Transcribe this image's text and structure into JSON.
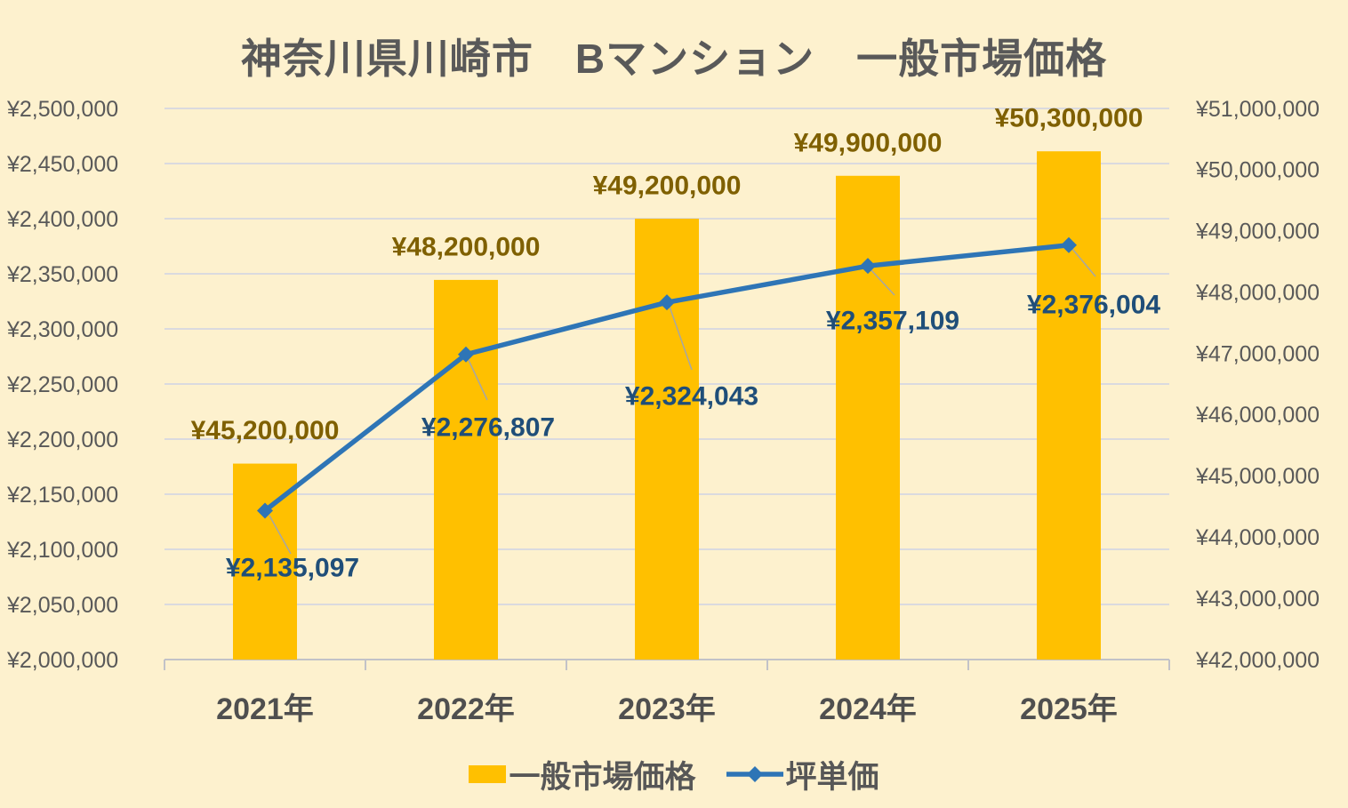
{
  "title": "神奈川県川崎市　Bマンション　一般市場価格",
  "chart_data": {
    "type": "combo-bar-line",
    "categories": [
      "2021年",
      "2022年",
      "2023年",
      "2024年",
      "2025年"
    ],
    "series": [
      {
        "name": "一般市場価格",
        "type": "bar",
        "axis": "right",
        "color": "#FFC000",
        "label_color": "#7F6000",
        "values": [
          45200000,
          48200000,
          49200000,
          49900000,
          50300000
        ],
        "labels": [
          "¥45,200,000",
          "¥48,200,000",
          "¥49,200,000",
          "¥49,900,000",
          "¥50,300,000"
        ]
      },
      {
        "name": "坪単価",
        "type": "line",
        "axis": "left",
        "color": "#2E75B6",
        "label_color": "#1F4E79",
        "values": [
          2135097,
          2276807,
          2324043,
          2357109,
          2376004
        ],
        "labels": [
          "¥2,135,097",
          "¥2,276,807",
          "¥2,324,043",
          "¥2,357,109",
          "¥2,376,004"
        ]
      }
    ],
    "left_axis": {
      "min": 2000000,
      "max": 2500000,
      "step": 50000,
      "labels_top_to_bottom": [
        "¥2,500,000",
        "¥2,450,000",
        "¥2,400,000",
        "¥2,350,000",
        "¥2,300,000",
        "¥2,250,000",
        "¥2,200,000",
        "¥2,150,000",
        "¥2,100,000",
        "¥2,050,000",
        "¥2,000,000"
      ]
    },
    "right_axis": {
      "min": 42000000,
      "max": 51000000,
      "step": 1000000,
      "labels_top_to_bottom": [
        "¥51,000,000",
        "¥50,000,000",
        "¥49,000,000",
        "¥48,000,000",
        "¥47,000,000",
        "¥46,000,000",
        "¥45,000,000",
        "¥44,000,000",
        "¥43,000,000",
        "¥42,000,000"
      ]
    },
    "grid": true,
    "legend_position": "bottom"
  },
  "colors": {
    "background": "#FDF1CE",
    "gridline": "#DADADF",
    "axis_line": "#C2C2C8",
    "leader_line": "#A6A6A6",
    "axis_text": "#595959",
    "category_text": "#4F4F4F",
    "title_text": "#595959"
  }
}
